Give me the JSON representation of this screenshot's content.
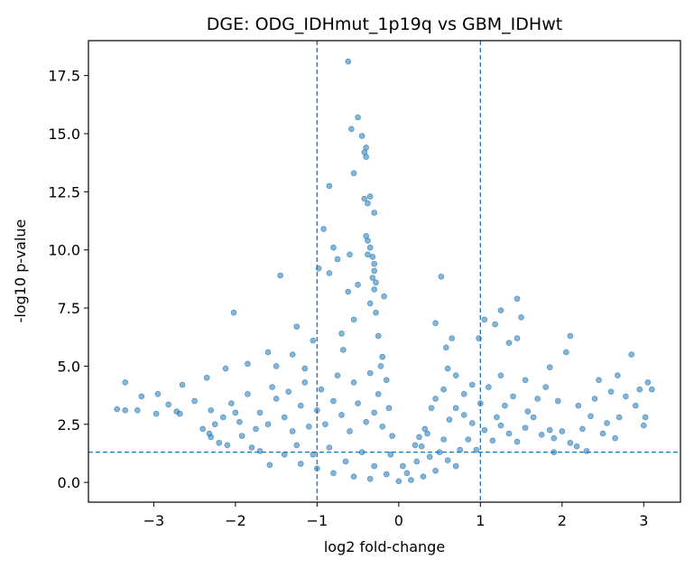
{
  "chart_data": {
    "type": "scatter",
    "title": "DGE: ODG_IDHmut_1p19q vs GBM_IDHwt",
    "xlabel": "log2 fold-change",
    "ylabel": "-log10 p-value",
    "xlim": [
      -3.8,
      3.45
    ],
    "ylim": [
      -0.85,
      19.0
    ],
    "x_ticks": [
      -3,
      -2,
      -1,
      0,
      1,
      2,
      3
    ],
    "x_tick_labels": [
      "−3",
      "−2",
      "−1",
      "0",
      "1",
      "2",
      "3"
    ],
    "y_ticks": [
      0.0,
      2.5,
      5.0,
      7.5,
      10.0,
      12.5,
      15.0,
      17.5
    ],
    "y_tick_labels": [
      "0.0",
      "2.5",
      "5.0",
      "7.5",
      "10.0",
      "12.5",
      "15.0",
      "17.5"
    ],
    "grid": false,
    "legend": false,
    "point_color": "#1f77b4",
    "point_alpha": 0.55,
    "threshold_color": "#1f77b4",
    "thresholds": {
      "fold_change_lines": [
        -1,
        1
      ],
      "pvalue_line": 1.3
    },
    "points": [
      [
        -0.62,
        18.1
      ],
      [
        -0.5,
        15.7
      ],
      [
        -0.58,
        15.2
      ],
      [
        -0.45,
        14.9
      ],
      [
        -0.4,
        14.4
      ],
      [
        -0.42,
        14.2
      ],
      [
        -0.4,
        14.0
      ],
      [
        -0.55,
        13.3
      ],
      [
        -0.85,
        12.75
      ],
      [
        -0.42,
        12.2
      ],
      [
        -0.35,
        12.3
      ],
      [
        -0.38,
        12.0
      ],
      [
        -0.3,
        11.6
      ],
      [
        -0.92,
        10.9
      ],
      [
        -0.4,
        10.6
      ],
      [
        -0.38,
        10.4
      ],
      [
        -0.35,
        10.1
      ],
      [
        -0.38,
        9.8
      ],
      [
        -0.32,
        9.7
      ],
      [
        -0.3,
        9.4
      ],
      [
        -0.3,
        9.1
      ],
      [
        -0.32,
        8.8
      ],
      [
        -0.28,
        8.6
      ],
      [
        -0.3,
        8.3
      ],
      [
        -0.8,
        10.1
      ],
      [
        -0.6,
        9.8
      ],
      [
        -1.45,
        8.9
      ],
      [
        -0.98,
        9.2
      ],
      [
        -0.75,
        9.6
      ],
      [
        -0.85,
        9.0
      ],
      [
        -0.5,
        8.5
      ],
      [
        -0.62,
        8.2
      ],
      [
        -2.02,
        7.3
      ],
      [
        -0.18,
        8.0
      ],
      [
        0.52,
        8.85
      ],
      [
        1.45,
        7.9
      ],
      [
        1.25,
        7.4
      ],
      [
        1.5,
        7.1
      ],
      [
        1.05,
        7.0
      ],
      [
        1.18,
        6.8
      ],
      [
        0.45,
        6.85
      ],
      [
        -1.25,
        6.7
      ],
      [
        -0.35,
        7.7
      ],
      [
        -0.55,
        7.0
      ],
      [
        -0.7,
        6.4
      ],
      [
        1.45,
        6.2
      ],
      [
        1.35,
        6.0
      ],
      [
        2.1,
        6.3
      ],
      [
        2.05,
        5.6
      ],
      [
        2.85,
        5.5
      ],
      [
        0.98,
        6.2
      ],
      [
        0.65,
        6.2
      ],
      [
        0.58,
        5.8
      ],
      [
        -1.05,
        6.1
      ],
      [
        -1.3,
        5.5
      ],
      [
        -1.6,
        5.6
      ],
      [
        -1.85,
        5.1
      ],
      [
        -1.5,
        5.0
      ],
      [
        -2.12,
        4.9
      ],
      [
        -1.15,
        4.9
      ],
      [
        -0.68,
        5.7
      ],
      [
        1.85,
        4.95
      ],
      [
        2.45,
        4.4
      ],
      [
        2.68,
        4.6
      ],
      [
        3.05,
        4.3
      ],
      [
        2.95,
        4.0
      ],
      [
        3.1,
        4.0
      ],
      [
        2.78,
        3.7
      ],
      [
        3.02,
        2.8
      ],
      [
        3.0,
        2.45
      ],
      [
        2.55,
        2.55
      ],
      [
        2.35,
        2.85
      ],
      [
        2.25,
        2.3
      ],
      [
        2.0,
        2.2
      ],
      [
        1.85,
        2.25
      ],
      [
        2.1,
        1.7
      ],
      [
        2.18,
        1.55
      ],
      [
        1.9,
        1.3
      ],
      [
        2.65,
        1.9
      ],
      [
        -3.35,
        4.3
      ],
      [
        -3.15,
        3.7
      ],
      [
        -2.95,
        3.8
      ],
      [
        -3.45,
        3.15
      ],
      [
        -3.35,
        3.1
      ],
      [
        -3.2,
        3.1
      ],
      [
        -2.97,
        2.95
      ],
      [
        -2.82,
        3.35
      ],
      [
        -2.72,
        3.05
      ],
      [
        -2.68,
        2.95
      ],
      [
        -2.65,
        4.2
      ],
      [
        -2.35,
        4.5
      ],
      [
        -2.5,
        3.5
      ],
      [
        -2.3,
        3.1
      ],
      [
        -2.25,
        2.5
      ],
      [
        -2.4,
        2.3
      ],
      [
        -2.32,
        2.1
      ],
      [
        -2.3,
        1.95
      ],
      [
        -2.2,
        1.7
      ],
      [
        -2.1,
        1.6
      ],
      [
        -1.92,
        2.0
      ],
      [
        -1.7,
        1.35
      ],
      [
        -1.58,
        0.75
      ],
      [
        -1.8,
        1.5
      ],
      [
        -2.0,
        3.0
      ],
      [
        -1.75,
        2.3
      ],
      [
        0.2,
        1.6
      ],
      [
        0.35,
        2.1
      ],
      [
        0.25,
        1.95
      ],
      [
        0.05,
        0.7
      ],
      [
        0.1,
        0.4
      ],
      [
        0.28,
        1.55
      ],
      [
        0.32,
        2.3
      ],
      [
        0.4,
        3.2
      ],
      [
        0.55,
        1.85
      ],
      [
        0.62,
        2.7
      ],
      [
        0.7,
        3.2
      ],
      [
        0.8,
        2.9
      ],
      [
        0.9,
        2.55
      ],
      [
        0.5,
        1.3
      ],
      [
        0.6,
        0.95
      ],
      [
        0.75,
        1.4
      ],
      [
        0.85,
        1.85
      ],
      [
        1.05,
        2.25
      ],
      [
        1.15,
        1.8
      ],
      [
        1.25,
        2.45
      ],
      [
        1.35,
        2.1
      ],
      [
        1.45,
        1.75
      ],
      [
        1.55,
        2.35
      ],
      [
        1.65,
        2.8
      ],
      [
        1.75,
        2.05
      ],
      [
        1.3,
        3.3
      ],
      [
        1.4,
        3.7
      ],
      [
        1.58,
        3.05
      ],
      [
        1.7,
        3.6
      ],
      [
        1.2,
        2.8
      ],
      [
        1.0,
        3.4
      ],
      [
        0.95,
        1.4
      ],
      [
        0.7,
        0.7
      ],
      [
        0.45,
        0.5
      ],
      [
        0.3,
        0.25
      ],
      [
        0.15,
        0.1
      ],
      [
        0.22,
        0.9
      ],
      [
        0.38,
        1.1
      ],
      [
        1.1,
        4.1
      ],
      [
        1.25,
        4.6
      ],
      [
        0.9,
        4.2
      ],
      [
        0.8,
        3.8
      ],
      [
        1.55,
        4.4
      ],
      [
        1.8,
        4.1
      ],
      [
        1.95,
        3.5
      ],
      [
        2.2,
        3.3
      ],
      [
        -0.2,
        2.4
      ],
      [
        -0.3,
        3.0
      ],
      [
        -0.25,
        3.8
      ],
      [
        -0.4,
        2.6
      ],
      [
        -0.5,
        3.4
      ],
      [
        -0.6,
        2.2
      ],
      [
        -0.7,
        2.9
      ],
      [
        -0.8,
        3.5
      ],
      [
        -0.9,
        2.5
      ],
      [
        -1.0,
        3.1
      ],
      [
        -1.1,
        2.4
      ],
      [
        -1.2,
        3.3
      ],
      [
        -1.3,
        2.2
      ],
      [
        -1.4,
        2.8
      ],
      [
        -1.5,
        3.6
      ],
      [
        -1.6,
        2.5
      ],
      [
        -1.7,
        3.0
      ],
      [
        -1.25,
        1.6
      ],
      [
        -1.05,
        1.2
      ],
      [
        -0.85,
        1.5
      ],
      [
        -0.65,
        0.9
      ],
      [
        -0.45,
        1.3
      ],
      [
        -0.3,
        0.7
      ],
      [
        -0.15,
        0.35
      ],
      [
        -0.1,
        1.2
      ],
      [
        -0.08,
        2.0
      ],
      [
        -0.12,
        3.2
      ],
      [
        -0.15,
        4.4
      ],
      [
        -0.2,
        5.4
      ],
      [
        -0.25,
        6.3
      ],
      [
        -0.22,
        5.0
      ],
      [
        -0.28,
        7.3
      ],
      [
        -0.35,
        4.7
      ],
      [
        -0.55,
        4.3
      ],
      [
        -0.75,
        4.6
      ],
      [
        -0.95,
        4.0
      ],
      [
        -1.15,
        4.3
      ],
      [
        -1.35,
        3.9
      ],
      [
        -1.55,
        4.1
      ],
      [
        -1.85,
        3.8
      ],
      [
        -2.05,
        3.4
      ],
      [
        -2.15,
        2.8
      ],
      [
        -1.95,
        2.6
      ],
      [
        -1.4,
        1.2
      ],
      [
        -1.2,
        0.8
      ],
      [
        -1.0,
        0.6
      ],
      [
        -0.8,
        0.4
      ],
      [
        -0.55,
        0.25
      ],
      [
        -0.35,
        0.15
      ],
      [
        0.0,
        0.05
      ],
      [
        0.6,
        4.9
      ],
      [
        0.7,
        4.6
      ],
      [
        0.55,
        4.0
      ],
      [
        0.45,
        3.6
      ],
      [
        1.9,
        1.9
      ],
      [
        2.3,
        1.35
      ],
      [
        2.5,
        2.1
      ],
      [
        2.7,
        2.8
      ],
      [
        2.9,
        3.3
      ],
      [
        2.6,
        3.9
      ],
      [
        2.4,
        3.6
      ]
    ]
  }
}
